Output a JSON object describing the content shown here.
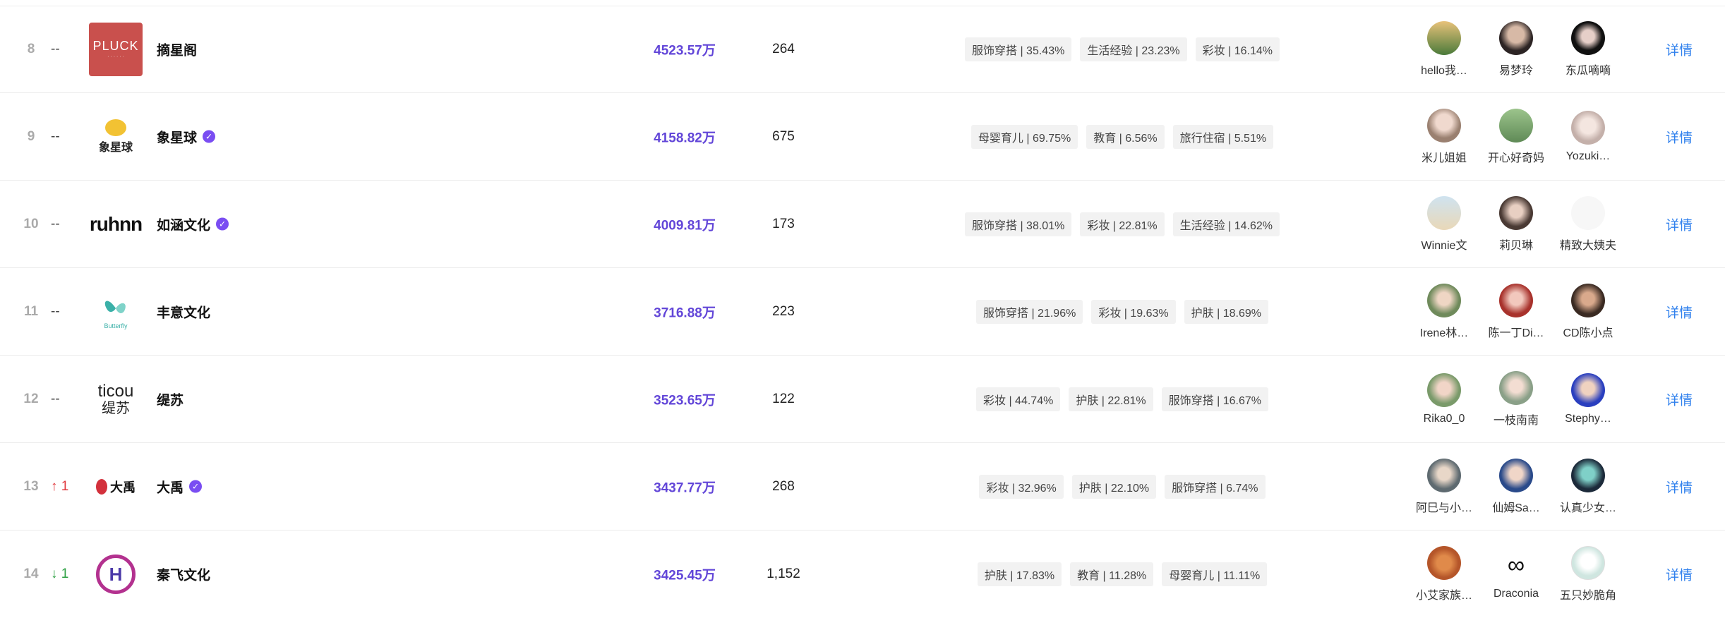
{
  "rows": [
    {
      "rank": "8",
      "change": "--",
      "name": "摘星阁",
      "logo_text": "PLUCK",
      "gmv": "4523.57万",
      "count": "264",
      "tags": [
        "服饰穿搭 | 35.43%",
        "生活经验 | 23.23%",
        "彩妆 | 16.14%"
      ],
      "kols": [
        "hello我…",
        "易梦玲",
        "东瓜嘀嘀"
      ],
      "detail": "详情"
    },
    {
      "rank": "9",
      "change": "--",
      "name": "象星球",
      "logo_text": "象星球",
      "gmv": "4158.82万",
      "count": "675",
      "tags": [
        "母婴育儿 | 69.75%",
        "教育 | 6.56%",
        "旅行住宿 | 5.51%"
      ],
      "kols": [
        "米儿姐姐",
        "开心好奇妈",
        "Yozuki…"
      ],
      "detail": "详情"
    },
    {
      "rank": "10",
      "change": "--",
      "name": "如涵文化",
      "logo_text": "ruhnn",
      "gmv": "4009.81万",
      "count": "173",
      "tags": [
        "服饰穿搭 | 38.01%",
        "彩妆 | 22.81%",
        "生活经验 | 14.62%"
      ],
      "kols": [
        "Winnie文",
        "莉贝琳",
        "精致大姨夫"
      ],
      "detail": "详情"
    },
    {
      "rank": "11",
      "change": "--",
      "name": "丰意文化",
      "logo_text": "Butterfly",
      "gmv": "3716.88万",
      "count": "223",
      "tags": [
        "服饰穿搭 | 21.96%",
        "彩妆 | 19.63%",
        "护肤 | 18.69%"
      ],
      "kols": [
        "Irene林…",
        "陈一丁Di…",
        "CD陈小点"
      ],
      "detail": "详情"
    },
    {
      "rank": "12",
      "change": "--",
      "name": "缇苏",
      "logo_text": "ticou",
      "logo_sub": "缇苏",
      "gmv": "3523.65万",
      "count": "122",
      "tags": [
        "彩妆 | 44.74%",
        "护肤 | 22.81%",
        "服饰穿搭 | 16.67%"
      ],
      "kols": [
        "Rika0_0",
        "一枝南南",
        "Stephy…"
      ],
      "detail": "详情"
    },
    {
      "rank": "13",
      "change": "↑ 1",
      "name": "大禹",
      "logo_text": "大禹",
      "gmv": "3437.77万",
      "count": "268",
      "tags": [
        "彩妆 | 32.96%",
        "护肤 | 22.10%",
        "服饰穿搭 | 6.74%"
      ],
      "kols": [
        "阿巳与小…",
        "仙姆Sa…",
        "认真少女…"
      ],
      "detail": "详情"
    },
    {
      "rank": "14",
      "change": "↓ 1",
      "name": "秦飞文化",
      "logo_text": "H",
      "gmv": "3425.45万",
      "count": "1,152",
      "tags": [
        "护肤 | 17.83%",
        "教育 | 11.28%",
        "母婴育儿 | 11.11%"
      ],
      "kols": [
        "小艾家族…",
        "Draconia",
        "五只妙脆角"
      ],
      "detail": "详情"
    }
  ],
  "verified_rows": [
    1,
    2,
    5
  ],
  "colors": {
    "gmv": "#6246d8",
    "detail": "#2f80ed",
    "verify": "#7a4df2",
    "up": "#e0393e",
    "down": "#2ea043"
  }
}
